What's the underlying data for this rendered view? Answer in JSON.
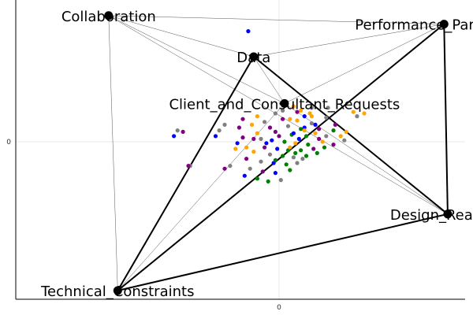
{
  "chart_data": {
    "type": "network-scatter",
    "axes": {
      "x_ticks": [
        "0"
      ],
      "y_ticks": [
        "0"
      ],
      "xlim": [
        -1,
        1
      ],
      "ylim": [
        -1,
        1
      ],
      "grid": true
    },
    "nodes": [
      {
        "id": "collab",
        "label": "Collaboration",
        "x": -0.94,
        "y": 0.89
      },
      {
        "id": "perf",
        "label": "Performance_Parameters",
        "x": 0.91,
        "y": 0.83
      },
      {
        "id": "data",
        "label": "Data",
        "x": -0.14,
        "y": 0.6
      },
      {
        "id": "client",
        "label": "Client_and_Consultant_Requests",
        "x": 0.03,
        "y": 0.27
      },
      {
        "id": "design",
        "label": "Design_Reasons",
        "x": 0.93,
        "y": -0.51
      },
      {
        "id": "tech",
        "label": "Technical_Constraints",
        "x": -0.89,
        "y": -1.05
      }
    ],
    "thick_edges": [
      [
        "perf",
        "design"
      ],
      [
        "perf",
        "tech"
      ],
      [
        "data",
        "tech"
      ],
      [
        "data",
        "design"
      ],
      [
        "design",
        "tech"
      ]
    ],
    "thin_edges": [
      [
        "collab",
        "perf"
      ],
      [
        "collab",
        "tech"
      ],
      [
        "collab",
        "design"
      ],
      [
        "collab",
        "data"
      ],
      [
        "collab",
        "client"
      ],
      [
        "perf",
        "data"
      ],
      [
        "perf",
        "client"
      ],
      [
        "tech",
        "client"
      ],
      [
        "design",
        "client"
      ],
      [
        "data",
        "client"
      ]
    ],
    "point_colors": [
      "#808080",
      "#800080",
      "#ffa500",
      "#008000",
      "#0000ff"
    ],
    "points": [
      {
        "x": -0.17,
        "y": 0.78,
        "c": 4
      },
      {
        "x": -0.35,
        "y": 0.04,
        "c": 4
      },
      {
        "x": -0.33,
        "y": 0.08,
        "c": 0
      },
      {
        "x": -0.22,
        "y": 0.1,
        "c": 1
      },
      {
        "x": -0.15,
        "y": 0.12,
        "c": 2
      },
      {
        "x": -0.08,
        "y": 0.14,
        "c": 0
      },
      {
        "x": 0.02,
        "y": 0.16,
        "c": 1
      },
      {
        "x": 0.1,
        "y": 0.15,
        "c": 2
      },
      {
        "x": 0.18,
        "y": 0.13,
        "c": 0
      },
      {
        "x": -0.05,
        "y": 0.1,
        "c": 1
      },
      {
        "x": 0.05,
        "y": 0.11,
        "c": 0
      },
      {
        "x": 0.12,
        "y": 0.09,
        "c": 3
      },
      {
        "x": 0.2,
        "y": 0.06,
        "c": 2
      },
      {
        "x": 0.26,
        "y": 0.04,
        "c": 0
      },
      {
        "x": -0.12,
        "y": 0.06,
        "c": 2
      },
      {
        "x": -0.02,
        "y": 0.07,
        "c": 1
      },
      {
        "x": 0.07,
        "y": 0.05,
        "c": 3
      },
      {
        "x": 0.15,
        "y": 0.04,
        "c": 3
      },
      {
        "x": 0.22,
        "y": 0.02,
        "c": 1
      },
      {
        "x": -0.1,
        "y": 0.02,
        "c": 0
      },
      {
        "x": -0.04,
        "y": 0.01,
        "c": 4
      },
      {
        "x": 0.03,
        "y": 0.0,
        "c": 3
      },
      {
        "x": 0.09,
        "y": -0.01,
        "c": 2
      },
      {
        "x": 0.16,
        "y": -0.02,
        "c": 3
      },
      {
        "x": 0.24,
        "y": 0.0,
        "c": 2
      },
      {
        "x": -0.08,
        "y": -0.04,
        "c": 1
      },
      {
        "x": -0.01,
        "y": -0.05,
        "c": 4
      },
      {
        "x": 0.05,
        "y": -0.06,
        "c": 3
      },
      {
        "x": 0.12,
        "y": -0.06,
        "c": 3
      },
      {
        "x": 0.19,
        "y": -0.05,
        "c": 1
      },
      {
        "x": -0.14,
        "y": -0.07,
        "c": 2
      },
      {
        "x": -0.05,
        "y": -0.09,
        "c": 0
      },
      {
        "x": 0.02,
        "y": -0.1,
        "c": 3
      },
      {
        "x": 0.08,
        "y": -0.11,
        "c": 0
      },
      {
        "x": 0.15,
        "y": -0.1,
        "c": 3
      },
      {
        "x": -0.18,
        "y": -0.12,
        "c": 1
      },
      {
        "x": -0.1,
        "y": -0.14,
        "c": 0
      },
      {
        "x": -0.03,
        "y": -0.15,
        "c": 4
      },
      {
        "x": 0.04,
        "y": -0.16,
        "c": 3
      },
      {
        "x": 0.1,
        "y": -0.15,
        "c": 0
      },
      {
        "x": -0.16,
        "y": -0.19,
        "c": 0
      },
      {
        "x": -0.09,
        "y": -0.21,
        "c": 1
      },
      {
        "x": -0.02,
        "y": -0.22,
        "c": 4
      },
      {
        "x": 0.06,
        "y": -0.2,
        "c": 3
      },
      {
        "x": -0.12,
        "y": -0.26,
        "c": 3
      },
      {
        "x": -0.06,
        "y": -0.28,
        "c": 3
      },
      {
        "x": 0.01,
        "y": -0.27,
        "c": 0
      },
      {
        "x": -0.19,
        "y": -0.24,
        "c": 4
      },
      {
        "x": -0.27,
        "y": -0.17,
        "c": 0
      },
      {
        "x": -0.3,
        "y": -0.19,
        "c": 1
      },
      {
        "x": -0.49,
        "y": -0.17,
        "c": 0
      },
      {
        "x": -0.5,
        "y": -0.17,
        "c": 1
      },
      {
        "x": -0.53,
        "y": 0.07,
        "c": 1
      },
      {
        "x": -0.58,
        "y": 0.04,
        "c": 4
      },
      {
        "x": -0.56,
        "y": 0.08,
        "c": 0
      },
      {
        "x": -0.3,
        "y": 0.12,
        "c": 0
      },
      {
        "x": -0.2,
        "y": 0.16,
        "c": 1
      },
      {
        "x": 0.08,
        "y": 0.25,
        "c": 2
      },
      {
        "x": 0.12,
        "y": 0.22,
        "c": 2
      },
      {
        "x": 0.1,
        "y": 0.21,
        "c": 1
      },
      {
        "x": 0.18,
        "y": 0.24,
        "c": 0
      },
      {
        "x": 0.27,
        "y": 0.24,
        "c": 0
      },
      {
        "x": 0.02,
        "y": 0.22,
        "c": 0
      },
      {
        "x": 0.04,
        "y": 0.28,
        "c": 0
      },
      {
        "x": 0.14,
        "y": 0.18,
        "c": 4
      },
      {
        "x": 0.18,
        "y": 0.18,
        "c": 2
      },
      {
        "x": 0.26,
        "y": 0.17,
        "c": 0
      },
      {
        "x": 0.31,
        "y": 0.12,
        "c": 1
      },
      {
        "x": 0.3,
        "y": 0.08,
        "c": 3
      },
      {
        "x": 0.34,
        "y": 0.04,
        "c": 2
      },
      {
        "x": 0.36,
        "y": 0.01,
        "c": 0
      },
      {
        "x": 0.3,
        "y": -0.02,
        "c": 1
      },
      {
        "x": 0.22,
        "y": 0.09,
        "c": 1
      },
      {
        "x": 0.14,
        "y": 0.1,
        "c": 4
      },
      {
        "x": 0.06,
        "y": 0.16,
        "c": 2
      },
      {
        "x": -0.12,
        "y": 0.18,
        "c": 2
      },
      {
        "x": -0.02,
        "y": 0.2,
        "c": 0
      },
      {
        "x": 0.17,
        "y": 0.2,
        "c": 2
      },
      {
        "x": 0.21,
        "y": -0.08,
        "c": 3
      },
      {
        "x": 0.25,
        "y": -0.04,
        "c": 3
      },
      {
        "x": 0.08,
        "y": 0.06,
        "c": 4
      },
      {
        "x": 0.11,
        "y": 0.02,
        "c": 4
      },
      {
        "x": -0.07,
        "y": -0.01,
        "c": 4
      },
      {
        "x": 0.0,
        "y": 0.04,
        "c": 1
      },
      {
        "x": -0.14,
        "y": 0.02,
        "c": 1
      },
      {
        "x": -0.2,
        "y": 0.03,
        "c": 1
      },
      {
        "x": -0.23,
        "y": -0.01,
        "c": 4
      },
      {
        "x": -0.24,
        "y": -0.05,
        "c": 2
      },
      {
        "x": -0.02,
        "y": -0.13,
        "c": 3
      },
      {
        "x": 0.06,
        "y": -0.04,
        "c": 2
      },
      {
        "x": 0.14,
        "y": 0.08,
        "c": 2
      },
      {
        "x": 0.2,
        "y": 0.12,
        "c": 4
      },
      {
        "x": 0.13,
        "y": -0.12,
        "c": 0
      },
      {
        "x": 0.09,
        "y": -0.08,
        "c": 3
      },
      {
        "x": -0.18,
        "y": -0.04,
        "c": 2
      },
      {
        "x": 0.41,
        "y": 0.21,
        "c": 2
      },
      {
        "x": 0.43,
        "y": 0.18,
        "c": 0
      },
      {
        "x": 0.47,
        "y": 0.2,
        "c": 2
      },
      {
        "x": 0.37,
        "y": 0.07,
        "c": 2
      }
    ]
  }
}
